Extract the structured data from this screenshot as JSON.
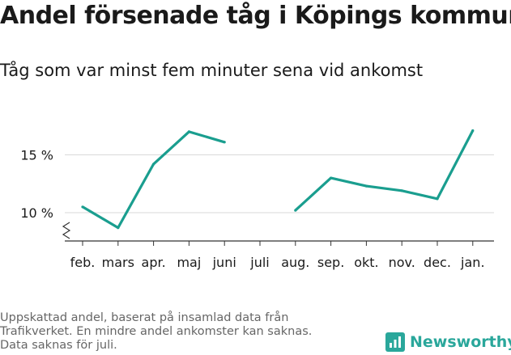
{
  "title": "Andel försenade tåg i Köpings kommun",
  "subtitle": "Tåg som var minst fem minuter sena vid ankomst",
  "footnote": [
    "Uppskattad andel, baserat på insamlad data från",
    "Trafikverket. En mindre andel ankomster kan saknas.",
    "Data saknas för juli."
  ],
  "brand": {
    "name": "Newsworthy",
    "color": "#2aa79b"
  },
  "chart_data": {
    "type": "line",
    "categories": [
      "feb.",
      "mars",
      "apr.",
      "maj",
      "juni",
      "juli",
      "aug.",
      "sep.",
      "okt.",
      "nov.",
      "dec.",
      "jan."
    ],
    "series": [
      {
        "values": [
          10.5,
          8.7,
          14.2,
          17.0,
          16.1,
          null,
          10.2,
          13.0,
          12.3,
          11.9,
          11.2,
          17.1
        ],
        "color": "#1a9e8f"
      }
    ],
    "yticks": [
      10,
      15
    ],
    "ytick_labels": [
      "10 %",
      "15 %"
    ],
    "ylim": [
      8.0,
      18.0
    ],
    "grid": true,
    "axis_break": true,
    "xlabel": "",
    "ylabel": ""
  }
}
